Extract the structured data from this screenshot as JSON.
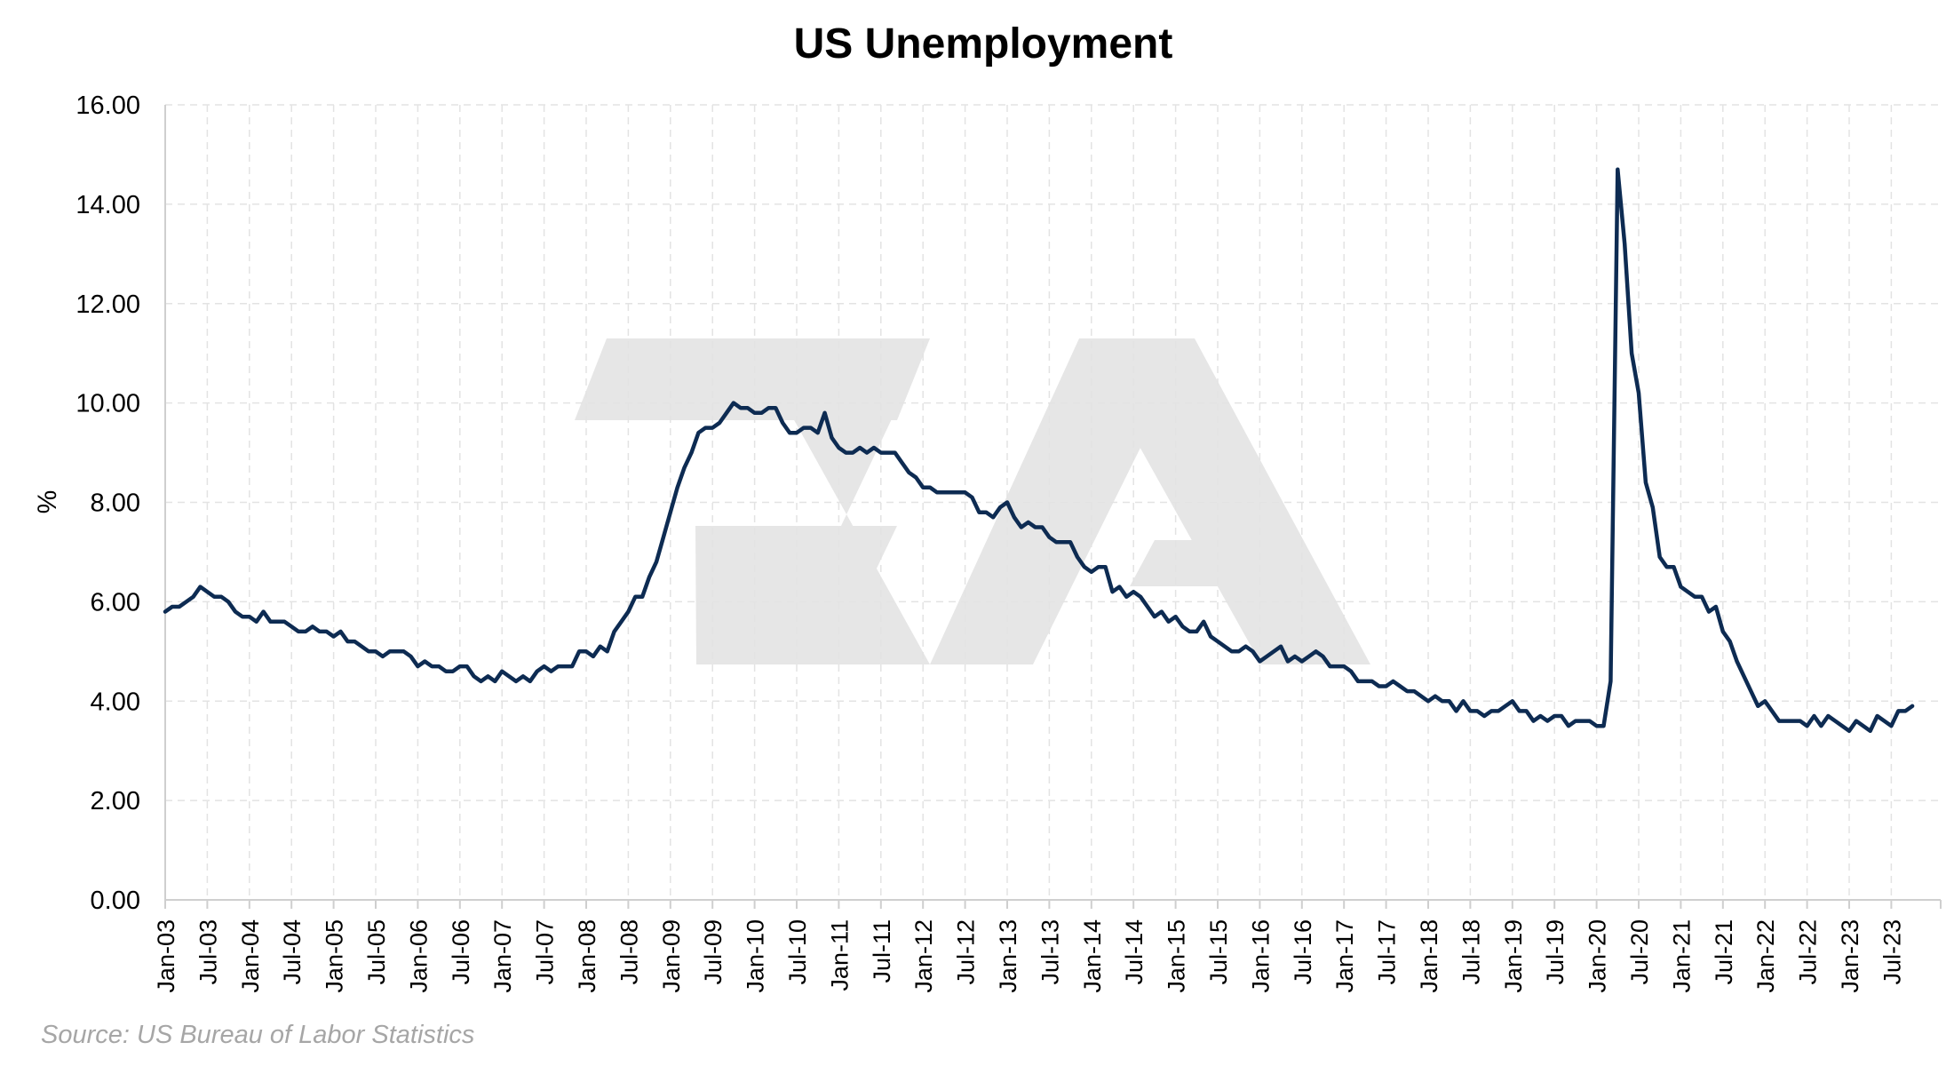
{
  "chart_data": {
    "type": "line",
    "title": "US Unemployment",
    "ylabel": "%",
    "xlabel": "",
    "source": "Source: US Bureau of Labor Statistics",
    "ylim": [
      0,
      16
    ],
    "yticks": [
      "0.00",
      "2.00",
      "4.00",
      "6.00",
      "8.00",
      "10.00",
      "12.00",
      "14.00",
      "16.00"
    ],
    "grid": true,
    "line_color": "#0d2b52",
    "watermark_color": "#e6e6e6",
    "xticks": [
      "Jan-03",
      "Jul-03",
      "Jan-04",
      "Jul-04",
      "Jan-05",
      "Jul-05",
      "Jan-06",
      "Jul-06",
      "Jan-07",
      "Jul-07",
      "Jan-08",
      "Jul-08",
      "Jan-09",
      "Jul-09",
      "Jan-10",
      "Jul-10",
      "Jan-11",
      "Jul-11",
      "Jan-12",
      "Jul-12",
      "Jan-13",
      "Jul-13",
      "Jan-14",
      "Jul-14",
      "Jan-15",
      "Jul-15",
      "Jan-16",
      "Jul-16",
      "Jan-17",
      "Jul-17",
      "Jan-18",
      "Jul-18",
      "Jan-19",
      "Jul-19",
      "Jan-20",
      "Jul-20",
      "Jan-21",
      "Jul-21",
      "Jan-22",
      "Jul-22",
      "Jan-23",
      "Jul-23"
    ],
    "series": [
      {
        "start": "Jan-03",
        "frequency": "monthly",
        "values": [
          5.8,
          5.9,
          5.9,
          6.0,
          6.1,
          6.3,
          6.2,
          6.1,
          6.1,
          6.0,
          5.8,
          5.7,
          5.7,
          5.6,
          5.8,
          5.6,
          5.6,
          5.6,
          5.5,
          5.4,
          5.4,
          5.5,
          5.4,
          5.4,
          5.3,
          5.4,
          5.2,
          5.2,
          5.1,
          5.0,
          5.0,
          4.9,
          5.0,
          5.0,
          5.0,
          4.9,
          4.7,
          4.8,
          4.7,
          4.7,
          4.6,
          4.6,
          4.7,
          4.7,
          4.5,
          4.4,
          4.5,
          4.4,
          4.6,
          4.5,
          4.4,
          4.5,
          4.4,
          4.6,
          4.7,
          4.6,
          4.7,
          4.7,
          4.7,
          5.0,
          5.0,
          4.9,
          5.1,
          5.0,
          5.4,
          5.6,
          5.8,
          6.1,
          6.1,
          6.5,
          6.8,
          7.3,
          7.8,
          8.3,
          8.7,
          9.0,
          9.4,
          9.5,
          9.5,
          9.6,
          9.8,
          10.0,
          9.9,
          9.9,
          9.8,
          9.8,
          9.9,
          9.9,
          9.6,
          9.4,
          9.4,
          9.5,
          9.5,
          9.4,
          9.8,
          9.3,
          9.1,
          9.0,
          9.0,
          9.1,
          9.0,
          9.1,
          9.0,
          9.0,
          9.0,
          8.8,
          8.6,
          8.5,
          8.3,
          8.3,
          8.2,
          8.2,
          8.2,
          8.2,
          8.2,
          8.1,
          7.8,
          7.8,
          7.7,
          7.9,
          8.0,
          7.7,
          7.5,
          7.6,
          7.5,
          7.5,
          7.3,
          7.2,
          7.2,
          7.2,
          6.9,
          6.7,
          6.6,
          6.7,
          6.7,
          6.2,
          6.3,
          6.1,
          6.2,
          6.1,
          5.9,
          5.7,
          5.8,
          5.6,
          5.7,
          5.5,
          5.4,
          5.4,
          5.6,
          5.3,
          5.2,
          5.1,
          5.0,
          5.0,
          5.1,
          5.0,
          4.8,
          4.9,
          5.0,
          5.1,
          4.8,
          4.9,
          4.8,
          4.9,
          5.0,
          4.9,
          4.7,
          4.7,
          4.7,
          4.6,
          4.4,
          4.4,
          4.4,
          4.3,
          4.3,
          4.4,
          4.3,
          4.2,
          4.2,
          4.1,
          4.0,
          4.1,
          4.0,
          4.0,
          3.8,
          4.0,
          3.8,
          3.8,
          3.7,
          3.8,
          3.8,
          3.9,
          4.0,
          3.8,
          3.8,
          3.6,
          3.7,
          3.6,
          3.7,
          3.7,
          3.5,
          3.6,
          3.6,
          3.6,
          3.5,
          3.5,
          4.4,
          14.7,
          13.2,
          11.0,
          10.2,
          8.4,
          7.9,
          6.9,
          6.7,
          6.7,
          6.3,
          6.2,
          6.1,
          6.1,
          5.8,
          5.9,
          5.4,
          5.2,
          4.8,
          4.5,
          4.2,
          3.9,
          4.0,
          3.8,
          3.6,
          3.6,
          3.6,
          3.6,
          3.5,
          3.7,
          3.5,
          3.7,
          3.6,
          3.5,
          3.4,
          3.6,
          3.5,
          3.4,
          3.7,
          3.6,
          3.5,
          3.8,
          3.8,
          3.9
        ]
      }
    ]
  }
}
